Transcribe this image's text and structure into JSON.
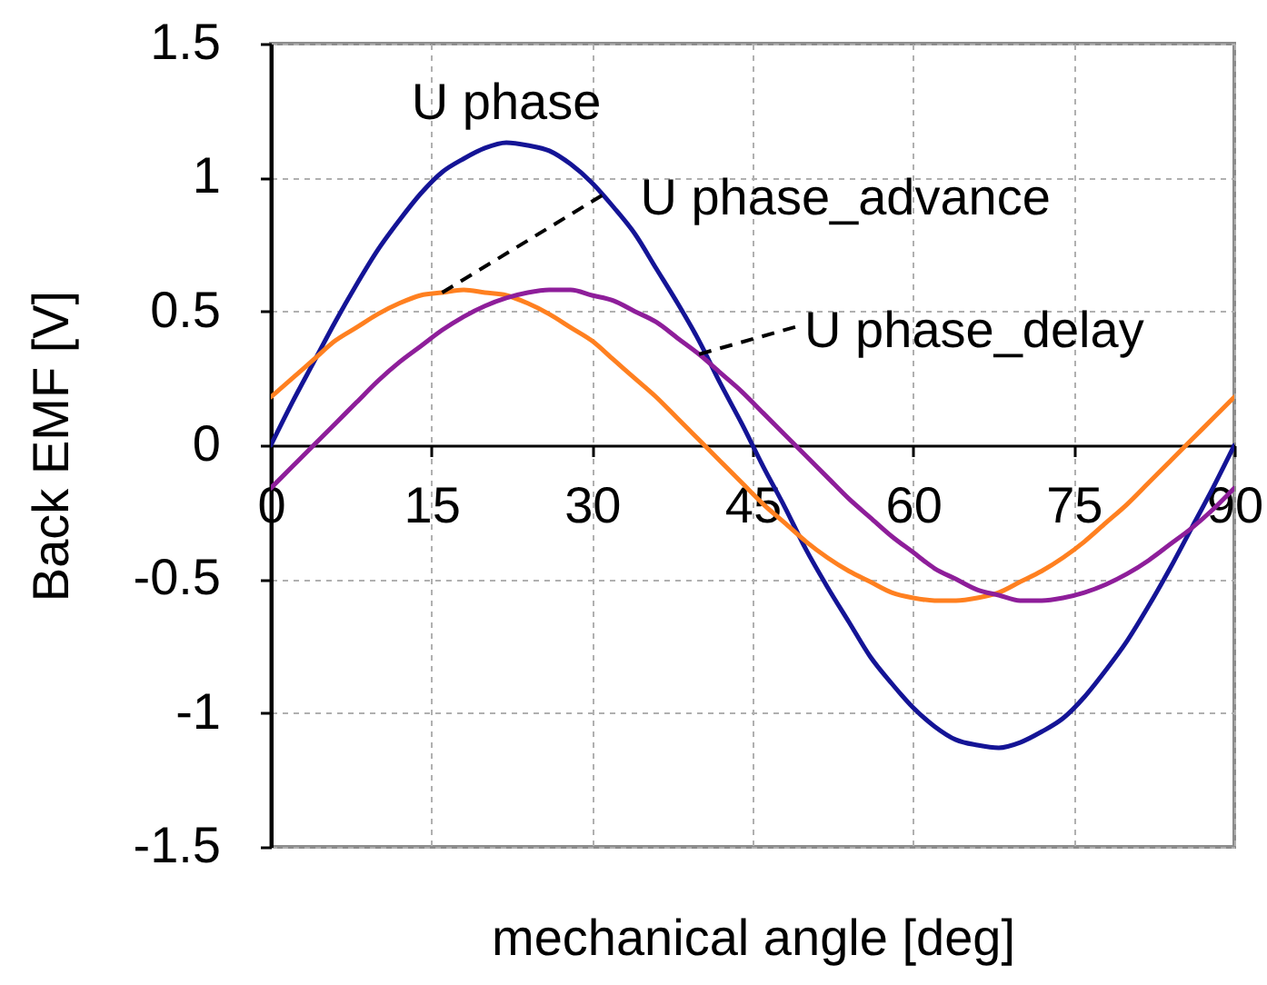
{
  "chart_data": {
    "type": "line",
    "xlabel": "mechanical angle [deg]",
    "ylabel": "Back EMF [V]",
    "x": [
      0,
      2,
      4,
      6,
      8,
      10,
      12,
      14,
      16,
      18,
      20,
      22,
      24,
      26,
      28,
      30,
      32,
      34,
      36,
      38,
      40,
      42,
      44,
      46,
      48,
      50,
      52,
      54,
      56,
      58,
      60,
      62,
      64,
      66,
      68,
      70,
      72,
      74,
      76,
      78,
      80,
      82,
      84,
      86,
      88,
      90
    ],
    "series": [
      {
        "name": "U phase",
        "color": "#141496",
        "values": [
          0,
          0.16,
          0.31,
          0.46,
          0.6,
          0.73,
          0.84,
          0.94,
          1.02,
          1.07,
          1.11,
          1.13,
          1.12,
          1.1,
          1.05,
          0.98,
          0.89,
          0.79,
          0.66,
          0.53,
          0.39,
          0.23,
          0.08,
          -0.08,
          -0.23,
          -0.39,
          -0.53,
          -0.66,
          -0.79,
          -0.89,
          -0.98,
          -1.05,
          -1.1,
          -1.12,
          -1.13,
          -1.11,
          -1.07,
          -1.02,
          -0.94,
          -0.84,
          -0.73,
          -0.6,
          -0.46,
          -0.31,
          -0.16,
          0
        ]
      },
      {
        "name": "U phase_advance",
        "color": "#ff8020",
        "values": [
          0.18,
          0.25,
          0.32,
          0.39,
          0.44,
          0.49,
          0.53,
          0.56,
          0.57,
          0.58,
          0.57,
          0.56,
          0.53,
          0.49,
          0.44,
          0.39,
          0.32,
          0.25,
          0.18,
          0.1,
          0.02,
          -0.06,
          -0.14,
          -0.22,
          -0.29,
          -0.36,
          -0.42,
          -0.47,
          -0.51,
          -0.55,
          -0.57,
          -0.58,
          -0.58,
          -0.57,
          -0.55,
          -0.51,
          -0.47,
          -0.42,
          -0.36,
          -0.29,
          -0.22,
          -0.14,
          -0.06,
          0.02,
          0.1,
          0.18
        ]
      },
      {
        "name": "U phase_delay",
        "color": "#8e1e9a",
        "values": [
          -0.16,
          -0.08,
          0,
          0.08,
          0.16,
          0.24,
          0.31,
          0.37,
          0.43,
          0.48,
          0.52,
          0.55,
          0.57,
          0.58,
          0.58,
          0.56,
          0.54,
          0.5,
          0.46,
          0.4,
          0.34,
          0.27,
          0.2,
          0.12,
          0.04,
          -0.04,
          -0.12,
          -0.2,
          -0.27,
          -0.34,
          -0.4,
          -0.46,
          -0.5,
          -0.54,
          -0.56,
          -0.58,
          -0.58,
          -0.57,
          -0.55,
          -0.52,
          -0.48,
          -0.43,
          -0.37,
          -0.31,
          -0.24,
          -0.16
        ]
      }
    ],
    "xlim": [
      0,
      90
    ],
    "ylim": [
      -1.5,
      1.5
    ],
    "xticks": [
      0,
      15,
      30,
      45,
      60,
      75,
      90
    ],
    "yticks": [
      -1.5,
      -1,
      -0.5,
      0,
      0.5,
      1,
      1.5
    ],
    "grid": true
  }
}
